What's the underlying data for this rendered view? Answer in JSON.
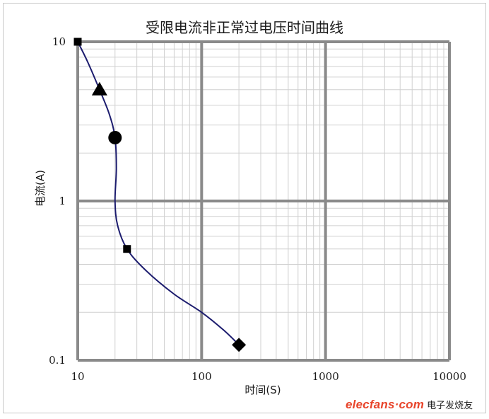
{
  "chart_data": {
    "type": "line",
    "title": "受限电流非正常过电压时间曲线",
    "xlabel": "时间(S)",
    "ylabel": "电流(A)",
    "xscale": "log",
    "yscale": "log",
    "xlim": [
      10,
      10000
    ],
    "ylim": [
      0.1,
      10
    ],
    "x_tick_labels": [
      "10",
      "100",
      "1000",
      "10000"
    ],
    "y_tick_labels": [
      "10",
      "1",
      "0.1"
    ],
    "grid": true,
    "curve": [
      [
        10,
        10
      ],
      [
        12,
        7.5
      ],
      [
        15,
        5
      ],
      [
        18,
        3.5
      ],
      [
        20,
        2.5
      ],
      [
        20.5,
        1.6
      ],
      [
        20,
        1.0
      ],
      [
        21,
        0.7
      ],
      [
        25,
        0.5
      ],
      [
        35,
        0.37
      ],
      [
        60,
        0.26
      ],
      [
        100,
        0.2
      ],
      [
        150,
        0.155
      ],
      [
        200,
        0.125
      ]
    ],
    "markers": [
      {
        "shape": "square",
        "x": 10,
        "y": 10
      },
      {
        "shape": "triangle",
        "x": 15,
        "y": 5
      },
      {
        "shape": "circle",
        "x": 20,
        "y": 2.5
      },
      {
        "shape": "square",
        "x": 25,
        "y": 0.5
      },
      {
        "shape": "diamond",
        "x": 200,
        "y": 0.125
      }
    ],
    "colors": {
      "line": "#1c1c6e",
      "marker": "#000000",
      "major_grid": "#8a8a8a",
      "minor_grid": "#d0d0d0"
    }
  },
  "watermark": {
    "site": "elecfans·com",
    "text": "电子发烧友"
  }
}
